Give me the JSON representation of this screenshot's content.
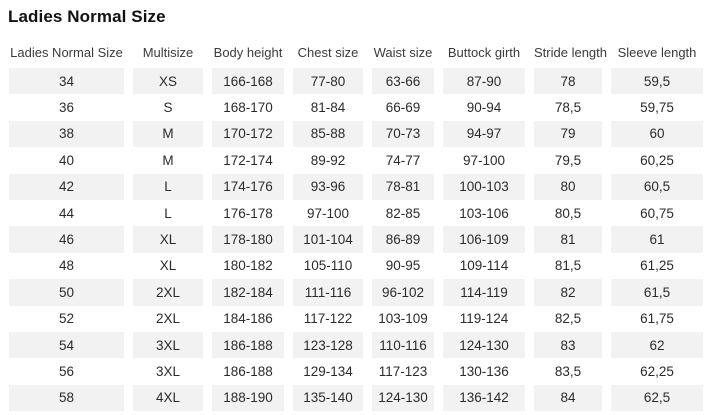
{
  "chart_data": {
    "type": "table",
    "title": "Ladies Normal Size",
    "columns": [
      "Ladies Normal Size",
      "Multisize",
      "Body height",
      "Chest size",
      "Waist size",
      "Buttock girth",
      "Stride length",
      "Sleeve length"
    ],
    "rows": [
      [
        "34",
        "XS",
        "166-168",
        "77-80",
        "63-66",
        "87-90",
        "78",
        "59,5"
      ],
      [
        "36",
        "S",
        "168-170",
        "81-84",
        "66-69",
        "90-94",
        "78,5",
        "59,75"
      ],
      [
        "38",
        "M",
        "170-172",
        "85-88",
        "70-73",
        "94-97",
        "79",
        "60"
      ],
      [
        "40",
        "M",
        "172-174",
        "89-92",
        "74-77",
        "97-100",
        "79,5",
        "60,25"
      ],
      [
        "42",
        "L",
        "174-176",
        "93-96",
        "78-81",
        "100-103",
        "80",
        "60,5"
      ],
      [
        "44",
        "L",
        "176-178",
        "97-100",
        "82-85",
        "103-106",
        "80,5",
        "60,75"
      ],
      [
        "46",
        "XL",
        "178-180",
        "101-104",
        "86-89",
        "106-109",
        "81",
        "61"
      ],
      [
        "48",
        "XL",
        "180-182",
        "105-110",
        "90-95",
        "109-114",
        "81,5",
        "61,25"
      ],
      [
        "50",
        "2XL",
        "182-184",
        "111-116",
        "96-102",
        "114-119",
        "82",
        "61,5"
      ],
      [
        "52",
        "2XL",
        "184-186",
        "117-122",
        "103-109",
        "119-124",
        "82,5",
        "61,75"
      ],
      [
        "54",
        "3XL",
        "186-188",
        "123-128",
        "110-116",
        "124-130",
        "83",
        "62"
      ],
      [
        "56",
        "3XL",
        "186-188",
        "129-134",
        "117-123",
        "130-136",
        "83,5",
        "62,25"
      ],
      [
        "58",
        "4XL",
        "188-190",
        "135-140",
        "124-130",
        "136-142",
        "84",
        "62,5"
      ]
    ],
    "layout": {
      "legend": "none",
      "grid": "off",
      "striping": "odd-rows",
      "stripe_color": "#f2f2f2",
      "header_text_color": "#3b3b3b",
      "cell_text_color": "#2b2b2b",
      "text_align": "center"
    }
  }
}
